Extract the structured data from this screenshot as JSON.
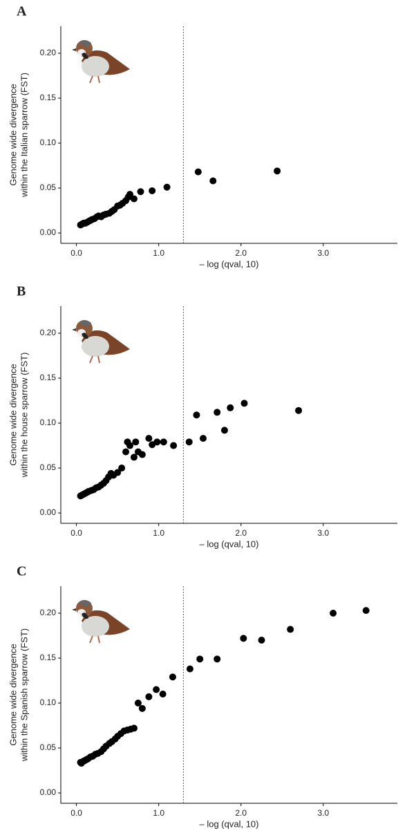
{
  "chart_data": [
    {
      "type": "scatter",
      "panel_label": "A",
      "x_label": "– log (qval, 10)",
      "y_label": [
        "Genome wide divergence",
        "within the Italian sparrow (FST)"
      ],
      "color": "#000000",
      "vline": 1.3,
      "xlim": [
        -0.19,
        3.9
      ],
      "ylim": [
        -0.0115,
        0.23
      ],
      "xticks": [
        {
          "value": 0,
          "label": "0.0"
        },
        {
          "value": 1,
          "label": "1.0"
        },
        {
          "value": 2,
          "label": "2.0"
        },
        {
          "value": 3,
          "label": "3.0"
        }
      ],
      "yticks": [
        {
          "value": 0,
          "label": "0.00"
        },
        {
          "value": 0.05,
          "label": "0.05"
        },
        {
          "value": 0.1,
          "label": "0.10"
        },
        {
          "value": 0.15,
          "label": "0.15"
        },
        {
          "value": 0.2,
          "label": "0.20"
        }
      ],
      "x": [
        0.05,
        0.07,
        0.09,
        0.11,
        0.13,
        0.15,
        0.17,
        0.19,
        0.22,
        0.25,
        0.27,
        0.3,
        0.33,
        0.36,
        0.4,
        0.43,
        0.46,
        0.5,
        0.53,
        0.56,
        0.6,
        0.63,
        0.65,
        0.7,
        0.78,
        0.92,
        1.1,
        1.48,
        1.66,
        2.44
      ],
      "values": [
        0.009,
        0.01,
        0.011,
        0.011,
        0.012,
        0.013,
        0.014,
        0.015,
        0.016,
        0.018,
        0.019,
        0.018,
        0.02,
        0.021,
        0.022,
        0.024,
        0.026,
        0.03,
        0.031,
        0.033,
        0.036,
        0.04,
        0.043,
        0.038,
        0.046,
        0.047,
        0.051,
        0.068,
        0.058,
        0.069
      ]
    },
    {
      "type": "scatter",
      "panel_label": "B",
      "x_label": "– log (qval, 10)",
      "y_label": [
        "Genome wide divergence",
        "within the house sparrow (FST)"
      ],
      "color": "#000000",
      "vline": 1.3,
      "xlim": [
        -0.19,
        3.9
      ],
      "ylim": [
        -0.0115,
        0.23
      ],
      "xticks": [
        {
          "value": 0,
          "label": "0.0"
        },
        {
          "value": 1,
          "label": "1.0"
        },
        {
          "value": 2,
          "label": "2.0"
        },
        {
          "value": 3,
          "label": "3.0"
        }
      ],
      "yticks": [
        {
          "value": 0,
          "label": "0.00"
        },
        {
          "value": 0.05,
          "label": "0.05"
        },
        {
          "value": 0.1,
          "label": "0.10"
        },
        {
          "value": 0.15,
          "label": "0.15"
        },
        {
          "value": 0.2,
          "label": "0.20"
        }
      ],
      "x": [
        0.05,
        0.07,
        0.09,
        0.11,
        0.13,
        0.15,
        0.18,
        0.21,
        0.24,
        0.27,
        0.3,
        0.33,
        0.36,
        0.39,
        0.42,
        0.45,
        0.5,
        0.55,
        0.6,
        0.62,
        0.65,
        0.7,
        0.72,
        0.75,
        0.8,
        0.88,
        0.92,
        0.98,
        1.06,
        1.18,
        1.37,
        1.46,
        1.54,
        1.71,
        1.8,
        1.87,
        2.04,
        2.7
      ],
      "values": [
        0.019,
        0.02,
        0.021,
        0.022,
        0.023,
        0.024,
        0.025,
        0.026,
        0.028,
        0.029,
        0.031,
        0.033,
        0.036,
        0.04,
        0.044,
        0.042,
        0.045,
        0.05,
        0.068,
        0.079,
        0.075,
        0.062,
        0.079,
        0.068,
        0.065,
        0.083,
        0.076,
        0.079,
        0.079,
        0.075,
        0.079,
        0.109,
        0.083,
        0.112,
        0.092,
        0.117,
        0.122,
        0.114
      ]
    },
    {
      "type": "scatter",
      "panel_label": "C",
      "x_label": "– log (qval, 10)",
      "y_label": [
        "Genome wide divergence",
        "within the Spanish sparrow (FST)"
      ],
      "color": "#000000",
      "vline": 1.3,
      "xlim": [
        -0.19,
        3.9
      ],
      "ylim": [
        -0.0115,
        0.23
      ],
      "xticks": [
        {
          "value": 0,
          "label": "0.0"
        },
        {
          "value": 1,
          "label": "1.0"
        },
        {
          "value": 2,
          "label": "2.0"
        },
        {
          "value": 3,
          "label": "3.0"
        }
      ],
      "yticks": [
        {
          "value": 0,
          "label": "0.00"
        },
        {
          "value": 0.05,
          "label": "0.05"
        },
        {
          "value": 0.1,
          "label": "0.10"
        },
        {
          "value": 0.15,
          "label": "0.15"
        },
        {
          "value": 0.2,
          "label": "0.20"
        }
      ],
      "x": [
        0.05,
        0.06,
        0.08,
        0.1,
        0.12,
        0.14,
        0.17,
        0.2,
        0.23,
        0.26,
        0.3,
        0.33,
        0.36,
        0.4,
        0.43,
        0.47,
        0.5,
        0.54,
        0.58,
        0.62,
        0.66,
        0.7,
        0.75,
        0.8,
        0.88,
        0.97,
        1.05,
        1.17,
        1.38,
        1.5,
        1.71,
        2.03,
        2.25,
        2.6,
        3.12,
        3.52
      ],
      "values": [
        0.034,
        0.033,
        0.035,
        0.036,
        0.037,
        0.038,
        0.04,
        0.041,
        0.043,
        0.044,
        0.046,
        0.049,
        0.052,
        0.055,
        0.057,
        0.06,
        0.063,
        0.066,
        0.069,
        0.07,
        0.071,
        0.072,
        0.1,
        0.094,
        0.107,
        0.115,
        0.11,
        0.129,
        0.138,
        0.149,
        0.149,
        0.172,
        0.17,
        0.182,
        0.2,
        0.203
      ]
    }
  ]
}
